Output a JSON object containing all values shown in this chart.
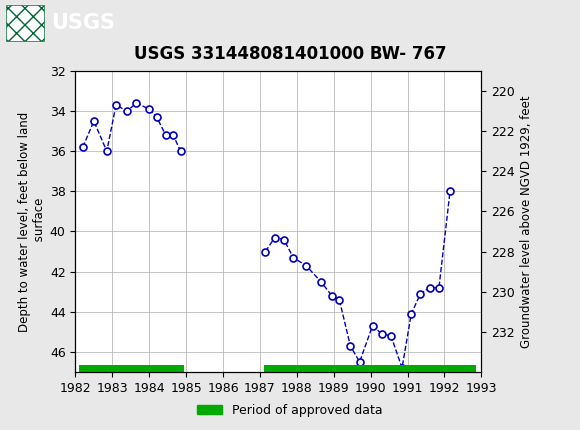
{
  "title": "USGS 331448081401000 BW- 767",
  "ylabel_left": "Depth to water level, feet below land\n surface",
  "ylabel_right": "Groundwater level above NGVD 1929, feet",
  "header_color": "#006633",
  "plot_bg_color": "#ffffff",
  "fig_bg_color": "#e8e8e8",
  "line_color": "#0000bb",
  "marker_facecolor": "#ffffff",
  "marker_edgecolor": "#0000bb",
  "grid_color": "#bbbbbb",
  "ylim_left": [
    32,
    47
  ],
  "ylim_right": [
    219,
    234
  ],
  "xlim": [
    1982,
    1993
  ],
  "yticks_left": [
    32,
    34,
    36,
    38,
    40,
    42,
    44,
    46
  ],
  "yticks_right": [
    220,
    222,
    224,
    226,
    228,
    230,
    232
  ],
  "xticks": [
    1982,
    1983,
    1984,
    1985,
    1986,
    1987,
    1988,
    1989,
    1990,
    1991,
    1992,
    1993
  ],
  "segment1_x": [
    1982.2,
    1982.5,
    1982.85,
    1983.1,
    1983.4,
    1983.65,
    1984.0,
    1984.2,
    1984.45,
    1984.65,
    1984.85
  ],
  "segment1_y": [
    35.8,
    34.5,
    36.0,
    33.7,
    34.0,
    33.6,
    33.9,
    34.3,
    35.2,
    35.2,
    36.0
  ],
  "segment2_x": [
    1987.15,
    1987.4,
    1987.65,
    1987.9,
    1988.25,
    1988.65,
    1988.95,
    1989.15,
    1989.45,
    1989.7,
    1990.05,
    1990.3,
    1990.55,
    1990.85,
    1991.1,
    1991.35,
    1991.6,
    1991.85,
    1992.15
  ],
  "segment2_y": [
    41.0,
    40.3,
    40.4,
    41.3,
    41.7,
    42.5,
    43.2,
    43.4,
    45.7,
    46.5,
    44.7,
    45.1,
    45.2,
    46.8,
    44.1,
    43.1,
    42.8,
    42.8,
    38.0
  ],
  "approved_bars": [
    {
      "xstart": 1982.1,
      "xend": 1984.95
    },
    {
      "xstart": 1987.1,
      "xend": 1990.85
    },
    {
      "xstart": 1990.85,
      "xend": 1992.85
    }
  ],
  "approved_color": "#00aa00",
  "legend_label": "Period of approved data",
  "title_fontsize": 12,
  "axis_fontsize": 8.5,
  "tick_fontsize": 9
}
